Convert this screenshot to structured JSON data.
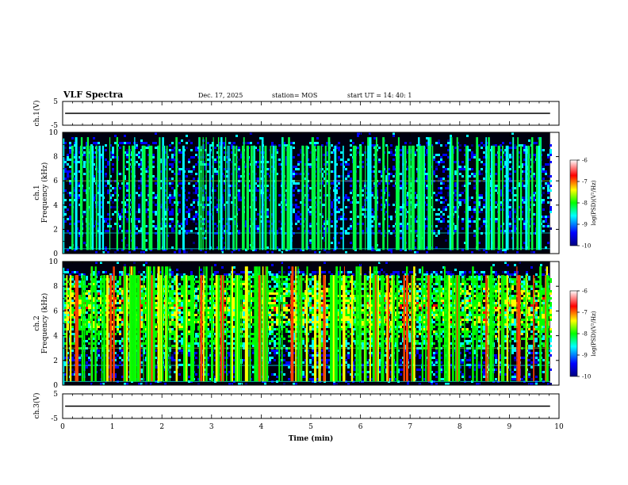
{
  "header": {
    "title": "VLF Spectra",
    "date": "Dec. 17, 2025",
    "station": "station= MOS",
    "start": "start  UT =   14: 40: 1"
  },
  "chart_data": [
    {
      "type": "line",
      "name": "ch1-voltage",
      "ylabel": "ch.1(V)",
      "ylim": [
        -5,
        5
      ],
      "yticks": [
        5,
        -5
      ],
      "xlim": [
        0,
        10
      ],
      "series": [
        {
          "name": "ch.1",
          "x": [
            0.05,
            9.82
          ],
          "values": [
            0,
            0
          ]
        }
      ]
    },
    {
      "type": "heatmap",
      "name": "ch1-spectrogram",
      "ylabel_lines": [
        "ch.1",
        "Frequency  (kHz)"
      ],
      "ylim": [
        0,
        10
      ],
      "yticks": [
        0,
        2,
        4,
        6,
        8,
        10
      ],
      "xlim": [
        0,
        10
      ],
      "data_end_min": 9.82,
      "colorbar": {
        "label": "log(PSD)(V²/Hz)",
        "range": [
          -10,
          -6
        ],
        "ticks": [
          -6,
          -7,
          -8,
          -9,
          -10
        ]
      }
    },
    {
      "type": "heatmap",
      "name": "ch2-spectrogram",
      "ylabel_lines": [
        "ch.2",
        "Frequency  (kHz)"
      ],
      "ylim": [
        0,
        10
      ],
      "yticks": [
        0,
        2,
        4,
        6,
        8,
        10
      ],
      "xlim": [
        0,
        10
      ],
      "data_end_min": 9.82,
      "colorbar": {
        "label": "log(PSD)(V²/Hz)",
        "range": [
          -10,
          -6
        ],
        "ticks": [
          -6,
          -7,
          -8,
          -9,
          -10
        ]
      }
    },
    {
      "type": "line",
      "name": "ch3-voltage",
      "ylabel": "ch.3(V)",
      "ylim": [
        -5,
        5
      ],
      "yticks": [
        5,
        -5
      ],
      "xlim": [
        0,
        10
      ],
      "xlabel": "Time  (min)",
      "xticks": [
        0,
        1,
        2,
        3,
        4,
        5,
        6,
        7,
        8,
        9,
        10
      ],
      "series": [
        {
          "name": "ch.3",
          "x": [
            0.05,
            9.82
          ],
          "values": [
            0,
            0
          ]
        }
      ]
    }
  ],
  "colors": {
    "background": "#000000",
    "axis": "#000000",
    "colormap": [
      "#000080",
      "#0000ff",
      "#00ffff",
      "#00ff00",
      "#ffff00",
      "#ff0000",
      "#ffffff"
    ]
  }
}
